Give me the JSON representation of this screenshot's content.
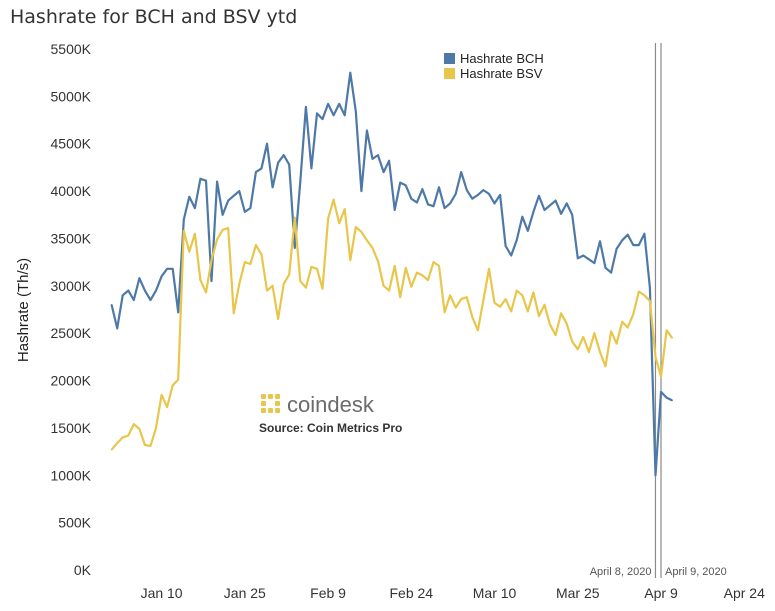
{
  "chart_data": {
    "type": "line",
    "title": "Hashrate for BCH and BSV ytd",
    "xlabel": "",
    "ylabel": "Hashrate (Th/s)",
    "ylim": [
      0,
      5500
    ],
    "yticks": [
      0,
      500,
      1000,
      1500,
      2000,
      2500,
      3000,
      3500,
      4000,
      4500,
      5000,
      5500
    ],
    "ytick_labels": [
      "0K",
      "500K",
      "1000K",
      "1500K",
      "2000K",
      "2500K",
      "3000K",
      "3500K",
      "4000K",
      "4500K",
      "5000K",
      "5500K"
    ],
    "xlim": [
      -3,
      119
    ],
    "xticks": [
      9,
      24,
      39,
      54,
      69,
      84,
      99,
      114
    ],
    "xtick_labels": [
      "Jan 10",
      "Jan 25",
      "Feb 9",
      "Feb 24",
      "Mar 10",
      "Mar 25",
      "Apr 9",
      "Apr 24"
    ],
    "grid": false,
    "legend": "top-center",
    "annotations": [
      {
        "x": 98,
        "label": "April 8, 2020"
      },
      {
        "x": 99,
        "label": "April 9, 2020"
      }
    ],
    "series": [
      {
        "name": "Hashrate BCH",
        "color": "#4e79a7",
        "x": [
          0,
          1,
          2,
          3,
          4,
          5,
          6,
          7,
          8,
          9,
          10,
          11,
          12,
          13,
          14,
          15,
          16,
          17,
          18,
          19,
          20,
          21,
          22,
          23,
          24,
          25,
          26,
          27,
          28,
          29,
          30,
          31,
          32,
          33,
          34,
          35,
          36,
          37,
          38,
          39,
          40,
          41,
          42,
          43,
          44,
          45,
          46,
          47,
          48,
          49,
          50,
          51,
          52,
          53,
          54,
          55,
          56,
          57,
          58,
          59,
          60,
          61,
          62,
          63,
          64,
          65,
          66,
          67,
          68,
          69,
          70,
          71,
          72,
          73,
          74,
          75,
          76,
          77,
          78,
          79,
          80,
          81,
          82,
          83,
          84,
          85,
          86,
          87,
          88,
          89,
          90,
          91,
          92,
          93,
          94,
          95,
          96,
          97,
          98,
          99,
          100,
          101
        ],
        "y": [
          2800,
          2550,
          2900,
          2950,
          2850,
          3080,
          2950,
          2850,
          2950,
          3100,
          3180,
          3180,
          2720,
          3700,
          3940,
          3820,
          4130,
          4110,
          3050,
          4100,
          3750,
          3900,
          3950,
          4000,
          3780,
          3820,
          4200,
          4240,
          4500,
          4040,
          4300,
          4380,
          4280,
          3400,
          4100,
          4890,
          4240,
          4820,
          4760,
          4920,
          4800,
          4920,
          4800,
          5250,
          4840,
          4000,
          4640,
          4340,
          4380,
          4200,
          4320,
          3800,
          4090,
          4060,
          3920,
          3880,
          4020,
          3860,
          3840,
          4040,
          3820,
          3870,
          3970,
          4200,
          4010,
          3920,
          3960,
          4010,
          3970,
          3870,
          3960,
          3420,
          3320,
          3480,
          3730,
          3580,
          3780,
          3950,
          3800,
          3850,
          3900,
          3760,
          3870,
          3750,
          3290,
          3320,
          3280,
          3240,
          3470,
          3190,
          3140,
          3390,
          3480,
          3540,
          3430,
          3430,
          3550,
          2980,
          1000,
          1880,
          1820,
          1790
        ]
      },
      {
        "name": "Hashrate BSV",
        "color": "#e8c64b",
        "x": [
          0,
          1,
          2,
          3,
          4,
          5,
          6,
          7,
          8,
          9,
          10,
          11,
          12,
          13,
          14,
          15,
          16,
          17,
          18,
          19,
          20,
          21,
          22,
          23,
          24,
          25,
          26,
          27,
          28,
          29,
          30,
          31,
          32,
          33,
          34,
          35,
          36,
          37,
          38,
          39,
          40,
          41,
          42,
          43,
          44,
          45,
          46,
          47,
          48,
          49,
          50,
          51,
          52,
          53,
          54,
          55,
          56,
          57,
          58,
          59,
          60,
          61,
          62,
          63,
          64,
          65,
          66,
          67,
          68,
          69,
          70,
          71,
          72,
          73,
          74,
          75,
          76,
          77,
          78,
          79,
          80,
          81,
          82,
          83,
          84,
          85,
          86,
          87,
          88,
          89,
          90,
          91,
          92,
          93,
          94,
          95,
          96,
          97,
          98,
          99,
          100,
          101
        ],
        "y": [
          1270,
          1340,
          1400,
          1420,
          1540,
          1490,
          1320,
          1310,
          1500,
          1850,
          1720,
          1950,
          2010,
          3580,
          3360,
          3550,
          3060,
          2930,
          3270,
          3490,
          3590,
          3610,
          2710,
          3020,
          3250,
          3230,
          3430,
          3330,
          2950,
          3000,
          2650,
          3020,
          3120,
          3720,
          3050,
          2980,
          3200,
          3180,
          2970,
          3710,
          3910,
          3660,
          3810,
          3270,
          3620,
          3570,
          3480,
          3400,
          3260,
          3000,
          2950,
          3210,
          2880,
          3190,
          2990,
          3140,
          3110,
          3060,
          3250,
          3210,
          2720,
          2900,
          2770,
          2860,
          2880,
          2670,
          2530,
          2850,
          3180,
          2820,
          2780,
          2860,
          2730,
          2950,
          2900,
          2730,
          2930,
          2680,
          2800,
          2590,
          2480,
          2710,
          2600,
          2410,
          2330,
          2460,
          2300,
          2500,
          2300,
          2150,
          2520,
          2390,
          2620,
          2560,
          2700,
          2940,
          2900,
          2840,
          2250,
          2040,
          2530,
          2450
        ]
      }
    ]
  },
  "watermark": {
    "brand": "coindesk",
    "source": "Source: Coin Metrics Pro"
  }
}
